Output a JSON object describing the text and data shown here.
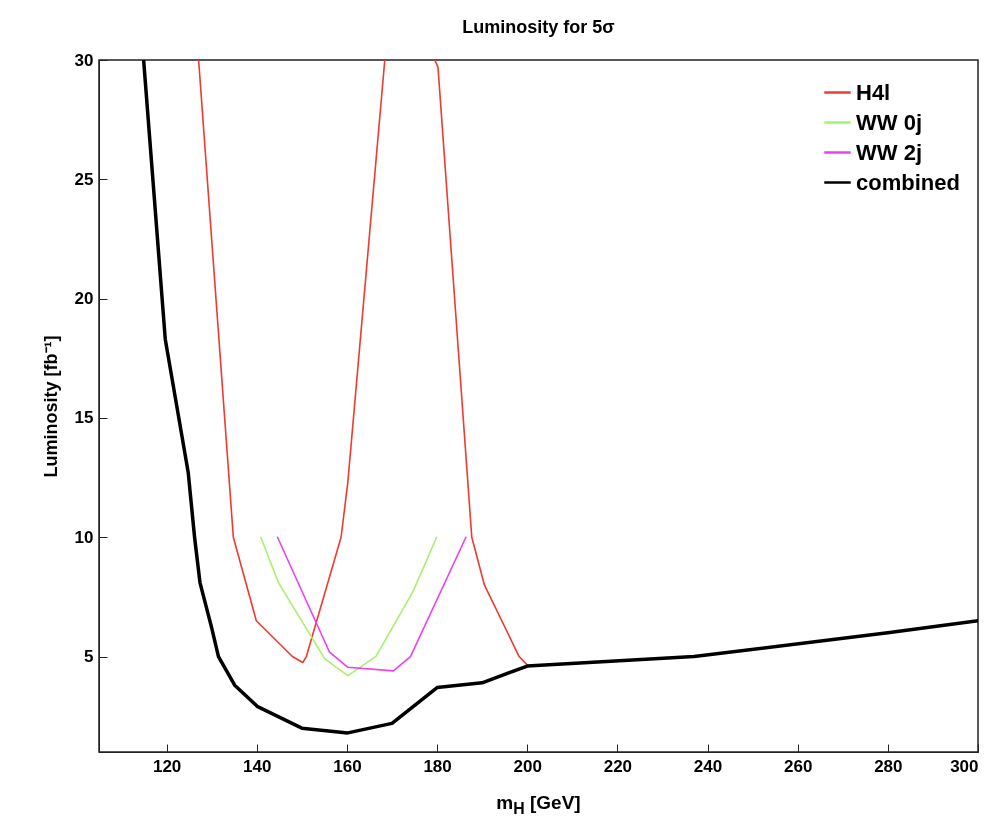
{
  "chart_data": {
    "type": "line",
    "title": "Luminosity for 5σ",
    "xlabel": "m$_{H}$ [GeV]",
    "ylabel": "Luminosity [fb⁻¹]",
    "xlim": [
      105,
      300
    ],
    "xticks": [
      120,
      140,
      160,
      180,
      200,
      220,
      240,
      260,
      280,
      300
    ],
    "ylim": [
      1,
      30
    ],
    "yticks": [
      5,
      10,
      15,
      20,
      25,
      30
    ],
    "grid": false,
    "legend": "top right",
    "line_style": "solid",
    "marker": "none",
    "series": [
      {
        "name": "H4l",
        "color": "#ee3b2f",
        "x": [
          127.1,
          134.8,
          139.9,
          147.9,
          150.2,
          151,
          158.7,
          160.2,
          168.4,
          null,
          179.5,
          180.2,
          187.7,
          190.5,
          198.2,
          200
        ],
        "values": [
          30,
          10,
          6.5,
          5.0,
          4.75,
          5.0,
          10,
          12.3,
          30,
          null,
          30,
          29.7,
          10,
          8.0,
          5.0,
          4.65
        ]
      },
      {
        "name": "WW 0j",
        "color": "#a8f070",
        "x": [
          140.9,
          144.8,
          155.1,
          160.2,
          166.4,
          174.6,
          179.9
        ],
        "values": [
          10,
          8.1,
          4.9,
          4.2,
          5.0,
          7.7,
          10
        ]
      },
      {
        "name": "WW 2j",
        "color": "#ee40ee",
        "x": [
          144.6,
          156.1,
          160.2,
          170.3,
          174.1,
          186.4
        ],
        "values": [
          10,
          5.2,
          4.55,
          4.4,
          5.0,
          10
        ]
      },
      {
        "name": "combined",
        "color": "#000000",
        "x": [
          114.9,
          119.7,
          124.8,
          126.2,
          127.4,
          130,
          131.5,
          135.1,
          140.2,
          150,
          160.2,
          170,
          180,
          190,
          200,
          237,
          280,
          300
        ],
        "values": [
          30,
          18.3,
          12.7,
          10,
          8.1,
          6.2,
          5.0,
          3.8,
          2.9,
          2.0,
          1.8,
          2.2,
          3.7,
          3.9,
          4.6,
          5.0,
          6.0,
          6.5
        ]
      }
    ]
  }
}
